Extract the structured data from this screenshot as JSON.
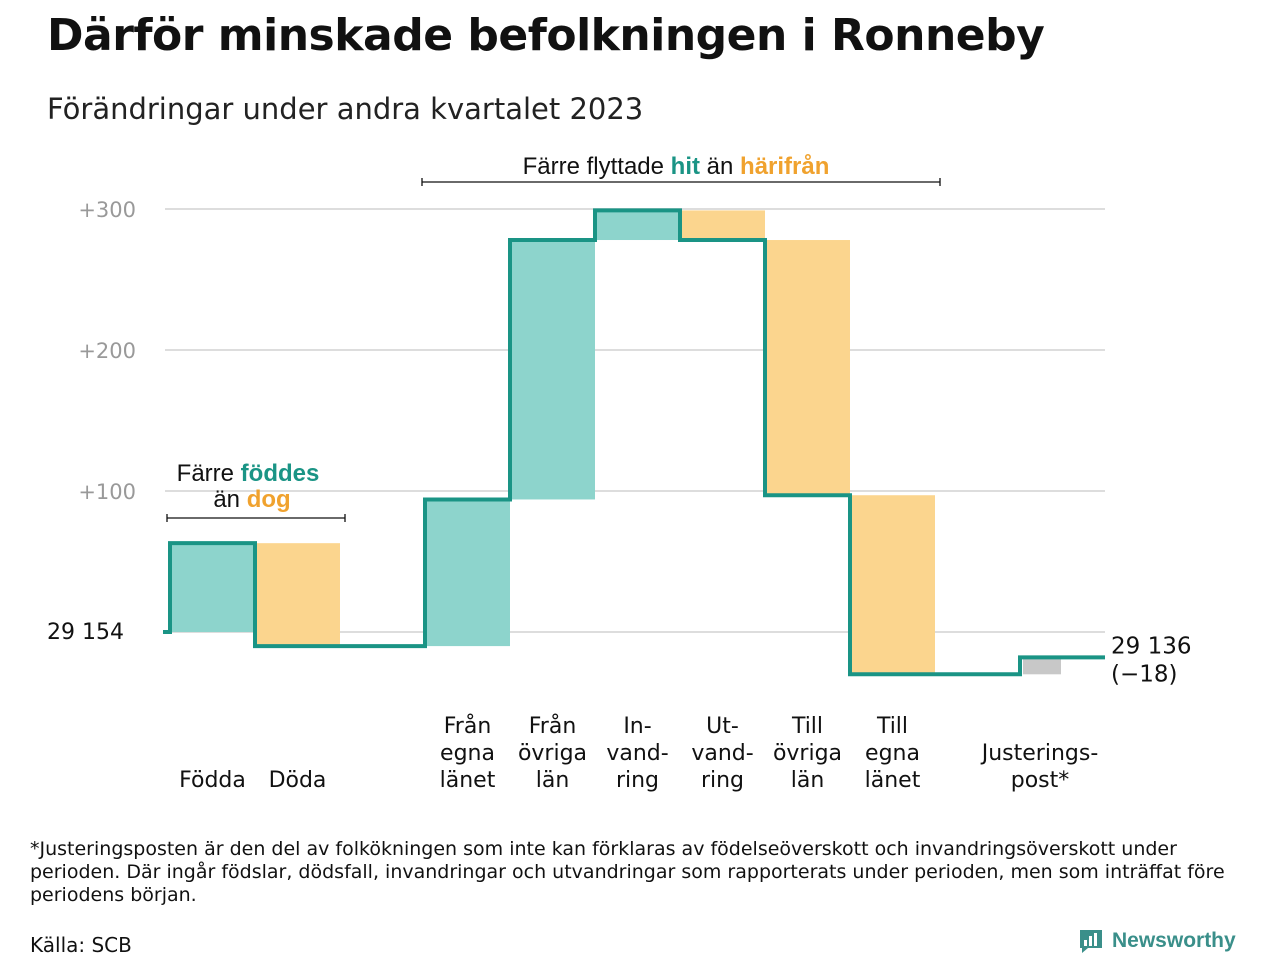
{
  "title": "Därför minskade befolkningen i Ronneby",
  "subtitle": "Förändringar under andra kvartalet 2023",
  "colors": {
    "in": "#8dd4cc",
    "out": "#fbd58e",
    "adjust": "#c8c8c8",
    "line": "#1a9485",
    "hit": "#1a9485",
    "harifran": "#f0a22e",
    "grid": "#dddddd",
    "tick": "#999999"
  },
  "chart_data": {
    "type": "waterfall",
    "start_label": "29 154",
    "end_label": "29 136",
    "end_change": "(−18)",
    "ylim": [
      -30,
      310
    ],
    "yticks": [
      {
        "value": 100,
        "label": "+100"
      },
      {
        "value": 200,
        "label": "+200"
      },
      {
        "value": 300,
        "label": "+300"
      }
    ],
    "steps": [
      {
        "label": [
          "Födda"
        ],
        "value": 63,
        "kind": "in"
      },
      {
        "label": [
          "Döda"
        ],
        "value": -73,
        "kind": "out"
      },
      {
        "label": [],
        "value": 0,
        "kind": "gap"
      },
      {
        "label": [
          "Från",
          "egna",
          "länet"
        ],
        "value": 104,
        "kind": "in"
      },
      {
        "label": [
          "Från",
          "övriga",
          "län"
        ],
        "value": 184,
        "kind": "in"
      },
      {
        "label": [
          "In-",
          "vand-",
          "ring"
        ],
        "value": 21,
        "kind": "in"
      },
      {
        "label": [
          "Ut-",
          "vand-",
          "ring"
        ],
        "value": -21,
        "kind": "out"
      },
      {
        "label": [
          "Till",
          "övriga",
          "län"
        ],
        "value": -181,
        "kind": "out"
      },
      {
        "label": [
          "Till",
          "egna",
          "länet"
        ],
        "value": -127,
        "kind": "out"
      },
      {
        "label": [],
        "value": 0,
        "kind": "gap"
      },
      {
        "label": [
          "Justerings-",
          "post*"
        ],
        "value": 12,
        "kind": "adjust"
      }
    ],
    "annotations": {
      "births": {
        "prefix": "Färre ",
        "hl1": "föddes",
        "mid": "än ",
        "hl2": "dog"
      },
      "migration": {
        "prefix": "Färre flyttade ",
        "hl1": "hit",
        "mid": " än ",
        "hl2": "härifrån"
      }
    }
  },
  "footnote": "*Justeringsposten är den del av folkökningen som inte kan förklaras av födelseöverskott och invandringsöverskott under perioden. Där ingår födslar, dödsfall, invandringar och utvandringar som rapporterats under perioden, men som inträffat före periodens början.",
  "source": "Källa: SCB",
  "brand": "Newsworthy"
}
